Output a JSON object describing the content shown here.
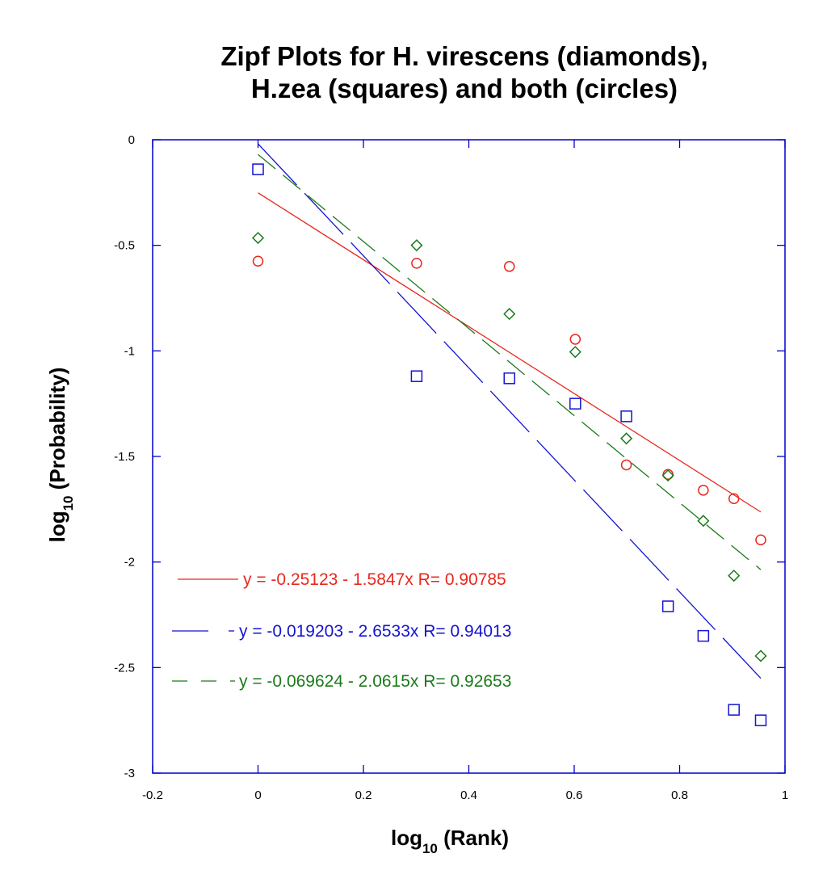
{
  "chart_data": {
    "type": "scatter",
    "title": [
      "Zipf Plots for H. virescens (diamonds),",
      "H.zea (squares) and both (circles)"
    ],
    "xlabel": {
      "main": "log",
      "sub": "10",
      "rest": " (Rank)"
    },
    "ylabel": {
      "main": "log",
      "sub": "10",
      "rest": " (Probability)"
    },
    "xlim": [
      -0.2,
      1
    ],
    "ylim": [
      -3,
      0
    ],
    "xticks": [
      -0.2,
      0,
      0.2,
      0.4,
      0.6,
      0.8,
      1
    ],
    "xtick_labels": [
      "-0.2",
      "0",
      "0.2",
      "0.4",
      "0.6",
      "0.8",
      "1"
    ],
    "yticks": [
      0,
      -0.5,
      -1,
      -1.5,
      -2,
      -2.5,
      -3
    ],
    "ytick_labels": [
      "0",
      "-0.5",
      "-1",
      "-1.5",
      "-2",
      "-2.5",
      "-3"
    ],
    "axis_color": "#0000cc",
    "series": [
      {
        "name": "both",
        "marker": "circle",
        "color": "#e8281e",
        "x": [
          0,
          0.301,
          0.477,
          0.602,
          0.699,
          0.778,
          0.845,
          0.903,
          0.954
        ],
        "y": [
          -0.575,
          -0.585,
          -0.6,
          -0.945,
          -1.54,
          -1.585,
          -1.66,
          -1.7,
          -1.895
        ],
        "fit": {
          "intercept": -0.25123,
          "slope": -1.5847,
          "dash": "solid",
          "x_range": [
            0,
            0.954
          ]
        },
        "legend": "y = -0.25123 - 1.5847x   R= 0.90785"
      },
      {
        "name": "H.zea",
        "marker": "square",
        "color": "#1414d2",
        "x": [
          0,
          0.301,
          0.477,
          0.602,
          0.699,
          0.778,
          0.845,
          0.903,
          0.954
        ],
        "y": [
          -0.14,
          -1.12,
          -1.13,
          -1.25,
          -1.31,
          -2.21,
          -2.35,
          -2.7,
          -2.75
        ],
        "fit": {
          "intercept": -0.019203,
          "slope": -2.6533,
          "dash": "long",
          "x_range": [
            0,
            0.954
          ]
        },
        "legend": "y = -0.019203 - 2.6533x   R= 0.94013"
      },
      {
        "name": "H. virescens",
        "marker": "diamond",
        "color": "#1a7a1a",
        "x": [
          0,
          0.301,
          0.477,
          0.602,
          0.699,
          0.778,
          0.845,
          0.903,
          0.954
        ],
        "y": [
          -0.465,
          -0.5,
          -0.825,
          -1.005,
          -1.415,
          -1.59,
          -1.805,
          -2.065,
          -2.445
        ],
        "fit": {
          "intercept": -0.069624,
          "slope": -2.0615,
          "dash": "medium",
          "x_range": [
            0,
            0.954
          ]
        },
        "legend": "y = -0.069624 - 2.0615x   R= 0.92653"
      }
    ]
  }
}
